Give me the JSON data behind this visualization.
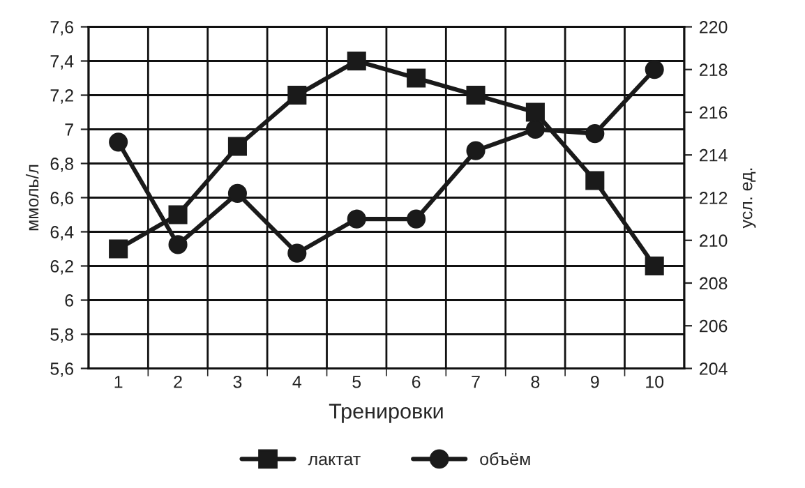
{
  "chart_data": {
    "type": "line",
    "xlabel": "Тренировки",
    "ylabel": "ммоль/л",
    "y2label": "усл. ед.",
    "categories": [
      "1",
      "2",
      "3",
      "4",
      "5",
      "6",
      "7",
      "8",
      "9",
      "10"
    ],
    "series": [
      {
        "name": "лактат",
        "color": "#1a1a1a",
        "marker": "square",
        "values": [
          6.3,
          6.5,
          6.9,
          7.2,
          7.4,
          7.3,
          7.2,
          7.1,
          6.7,
          6.2
        ]
      },
      {
        "name": "объём",
        "color": "#1a1a1a",
        "marker": "circle",
        "axis": "y2",
        "values": [
          214.6,
          209.8,
          212.2,
          209.4,
          211.0,
          211.0,
          214.2,
          215.2,
          215.0,
          218.0
        ]
      }
    ],
    "ylim": [
      5.6,
      7.6
    ],
    "yticks": [
      {
        "value": 5.6,
        "label": "5,6"
      },
      {
        "value": 5.8,
        "label": "5,8"
      },
      {
        "value": 6,
        "label": "6"
      },
      {
        "value": 6.2,
        "label": "6,2"
      },
      {
        "value": 6.4,
        "label": "6,4"
      },
      {
        "value": 6.6,
        "label": "6,6"
      },
      {
        "value": 6.8,
        "label": "6,8"
      },
      {
        "value": 7,
        "label": "7"
      },
      {
        "value": 7.2,
        "label": "7,2"
      },
      {
        "value": 7.4,
        "label": "7,4"
      },
      {
        "value": 7.6,
        "label": "7,6"
      }
    ],
    "y2lim": [
      204,
      220
    ],
    "y2ticks": [
      204,
      206,
      208,
      210,
      212,
      214,
      216,
      218,
      220
    ],
    "grid": true,
    "legend": "bottom",
    "line_style": "solid"
  }
}
